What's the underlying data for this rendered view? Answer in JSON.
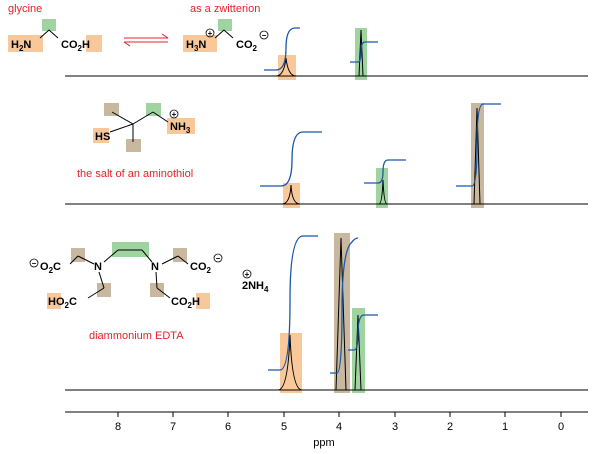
{
  "labels": {
    "glycine": "glycine",
    "zwitterion": "as a zwitterion",
    "aminothiol": "the salt of an aminothiol",
    "edta": "diammonium EDTA"
  },
  "molecules": {
    "glycine": {
      "left": "H",
      "left_sub": "2",
      "left_tail": "N",
      "right": "CO",
      "right_sub": "2",
      "right_tail": "H"
    },
    "zwitterion": {
      "left": "H",
      "left_sub": "3",
      "left_tail": "N",
      "charge": "+",
      "right": "CO",
      "right_sub": "2",
      "right_charge": "−"
    },
    "aminothiol": {
      "hs": "HS",
      "nh": "NH",
      "nh_sub": "3",
      "charge": "+"
    },
    "edta": {
      "o2c": "O",
      "o2c_sub": "2",
      "o2c_tail": "C",
      "n": "N",
      "co2": "CO",
      "co2_sub": "2",
      "ho2c": "HO",
      "ho2c_sub": "2",
      "ho2c_tail": "C",
      "co2h": "CO",
      "co2h_sub": "2",
      "co2h_tail": "H",
      "nh4_pre": "2NH",
      "nh4_sub": "4"
    }
  },
  "axis": {
    "label": "ppm",
    "ticks": [
      "8",
      "7",
      "6",
      "5",
      "4",
      "3",
      "2",
      "1",
      "0"
    ]
  },
  "colors": {
    "accent_red": "#e8202a",
    "orange": "#f9c89a",
    "green": "#9fd4a0",
    "tan": "#c8b8a0",
    "integral": "#1a56a8"
  }
}
